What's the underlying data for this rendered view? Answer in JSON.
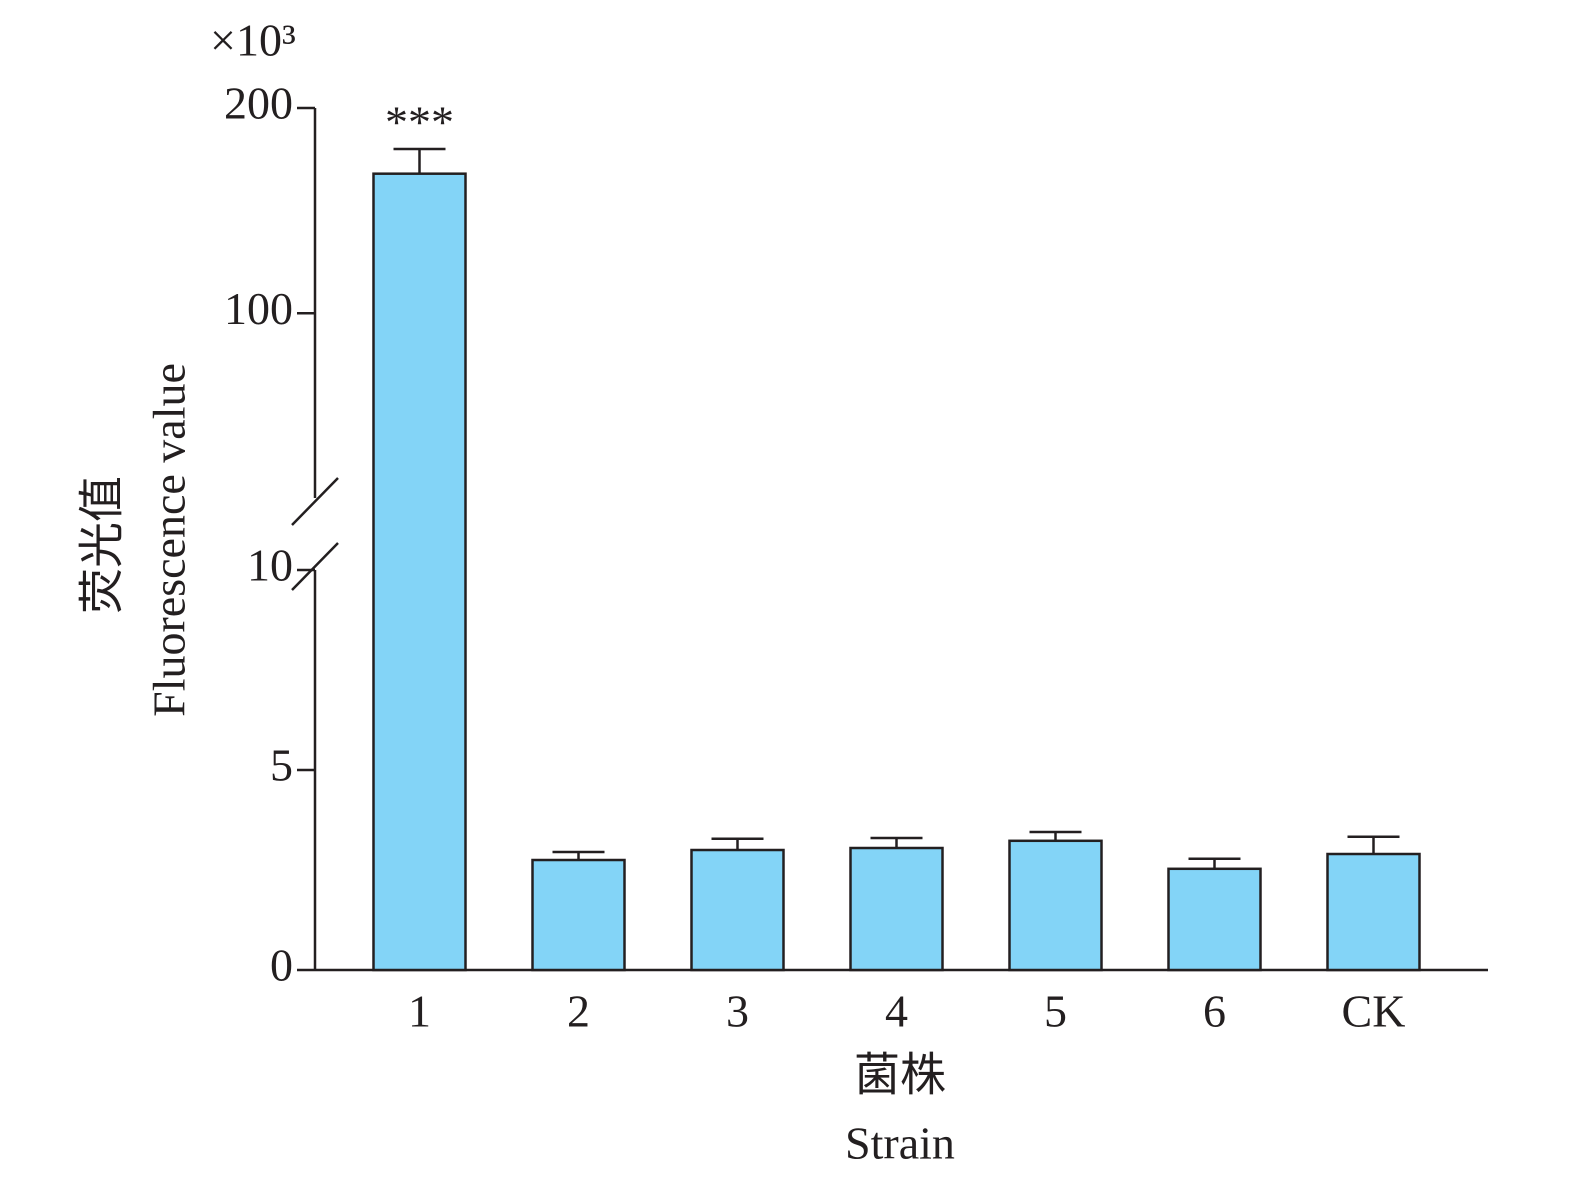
{
  "chart_data": {
    "type": "bar",
    "y_unit": "×10³",
    "y_label": [
      "荧光值",
      "Fluorescence value"
    ],
    "x_label": [
      "菌株",
      "Strain"
    ],
    "categories": [
      "1",
      "2",
      "3",
      "4",
      "5",
      "6",
      "CK"
    ],
    "values": [
      168,
      2.75,
      3.0,
      3.05,
      3.23,
      2.53,
      2.9
    ],
    "errors": [
      12,
      0.2,
      0.28,
      0.25,
      0.22,
      0.25,
      0.43
    ],
    "significance": [
      "***",
      null,
      null,
      null,
      null,
      null,
      null
    ],
    "color": "#83d4f7",
    "ylim": [
      0,
      200
    ],
    "y_break": 10,
    "yticks": [
      0,
      5,
      10,
      100,
      200
    ]
  }
}
